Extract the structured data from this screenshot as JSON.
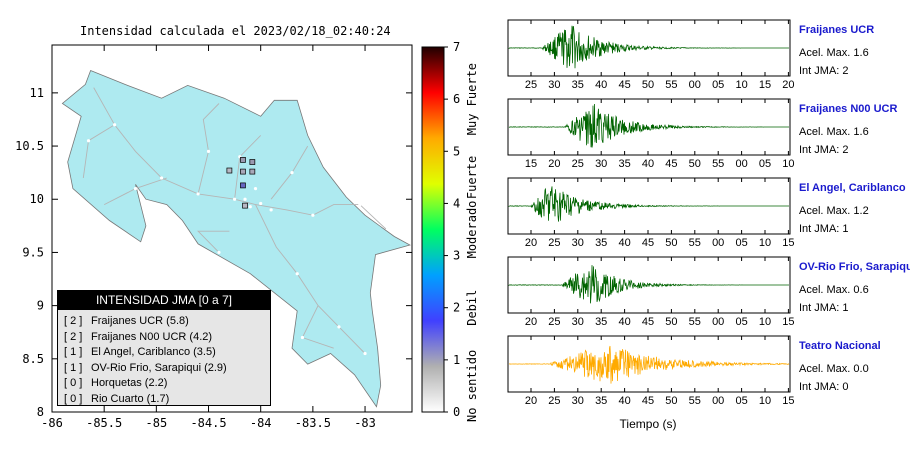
{
  "map": {
    "title": "Intensidad calculada el 2023/02/18_02:40:24",
    "lon_ticks": [
      "-86",
      "-85.5",
      "-85",
      "-84.5",
      "-84",
      "-83.5",
      "-83"
    ],
    "lat_ticks": [
      "8",
      "8.5",
      "9",
      "9.5",
      "10",
      "10.5",
      "11"
    ],
    "lon_range": [
      -86,
      -82.55
    ],
    "lat_range": [
      8,
      11.45
    ],
    "land_color": "#aeeaf0",
    "stations": [
      {
        "lon": -84.3,
        "lat": 10.27,
        "color": "#b8b8c4"
      },
      {
        "lon": -84.17,
        "lat": 10.37,
        "color": "#9a9ab0"
      },
      {
        "lon": -84.17,
        "lat": 10.26,
        "color": "#a8a8b8"
      },
      {
        "lon": -84.17,
        "lat": 10.13,
        "color": "#6666c0"
      },
      {
        "lon": -84.08,
        "lat": 10.35,
        "color": "#9a9ab0"
      },
      {
        "lon": -84.08,
        "lat": 10.26,
        "color": "#a8a8b8"
      },
      {
        "lon": -84.15,
        "lat": 9.94,
        "color": "#b8b8c4"
      }
    ]
  },
  "legend": {
    "title": "INTENSIDAD JMA [0 a 7]",
    "items": [
      {
        "level": "[ 2 ]",
        "label": "Fraijanes UCR (5.8)"
      },
      {
        "level": "[ 2 ]",
        "label": "Fraijanes N00 UCR (4.2)"
      },
      {
        "level": "[ 1 ]",
        "label": "El Angel, Cariblanco (3.5)"
      },
      {
        "level": "[ 1 ]",
        "label": "OV-Rio Frio, Sarapiqui (2.9)"
      },
      {
        "level": "[ 0 ]",
        "label": "Horquetas (2.2)"
      },
      {
        "level": "[ 0 ]",
        "label": "Rio Cuarto (1.7)"
      }
    ]
  },
  "colorbar": {
    "ticks": [
      "0",
      "1",
      "2",
      "3",
      "4",
      "5",
      "6",
      "7"
    ],
    "labels": [
      {
        "text": "No sentido",
        "center": 0.5
      },
      {
        "text": "Debil",
        "center": 2
      },
      {
        "text": "Moderado",
        "center": 3.5
      },
      {
        "text": "Fuerte",
        "center": 4.5
      },
      {
        "text": "Muy Fuerte",
        "center": 6
      }
    ],
    "stops": [
      "#ffffff",
      "#b0b0b0",
      "#4040ff",
      "#00a0ff",
      "#00ff60",
      "#e0ff00",
      "#ffaa00",
      "#ff0000",
      "#200000"
    ]
  },
  "chart_data": {
    "type": "line",
    "xlabel": "Tiempo (s)",
    "panels": [
      {
        "name": "Fraijanes UCR",
        "acel_label": "Acel. Max. 1.6",
        "jma_label": "Int JMA: 2",
        "color": "#006400",
        "amp": 0.95,
        "onset": 0.12,
        "peak": 0.22,
        "decay": 0.1,
        "ticks": [
          "25",
          "30",
          "35",
          "40",
          "45",
          "50",
          "55",
          "00",
          "05",
          "10",
          "15",
          "20"
        ]
      },
      {
        "name": "Fraijanes N00 UCR",
        "acel_label": "Acel. Max. 1.6",
        "jma_label": "Int JMA: 2",
        "color": "#006400",
        "amp": 0.95,
        "onset": 0.2,
        "peak": 0.3,
        "decay": 0.1,
        "ticks": [
          "15",
          "20",
          "25",
          "30",
          "35",
          "40",
          "45",
          "50",
          "55",
          "00",
          "05",
          "10"
        ]
      },
      {
        "name": "El Angel, Cariblanco",
        "acel_label": "Acel. Max. 1.2",
        "jma_label": "Int JMA: 1",
        "color": "#006400",
        "amp": 0.9,
        "onset": 0.08,
        "peak": 0.15,
        "decay": 0.1,
        "ticks": [
          "20",
          "25",
          "30",
          "35",
          "40",
          "45",
          "50",
          "55",
          "00",
          "05",
          "10",
          "15"
        ]
      },
      {
        "name": "OV-Rio Frio, Sarapiqui",
        "acel_label": "Acel. Max. 0.6",
        "jma_label": "Int JMA: 1",
        "color": "#006400",
        "amp": 0.9,
        "onset": 0.19,
        "peak": 0.29,
        "decay": 0.09,
        "ticks": [
          "20",
          "25",
          "30",
          "35",
          "40",
          "45",
          "50",
          "55",
          "00",
          "05",
          "10",
          "15"
        ]
      },
      {
        "name": "Teatro Nacional",
        "acel_label": "Acel. Max. 0.0",
        "jma_label": "Int JMA: 0",
        "color": "#ffaa00",
        "amp": 0.82,
        "onset": 0.15,
        "peak": 0.35,
        "decay": 0.17,
        "ticks": [
          "20",
          "25",
          "30",
          "35",
          "40",
          "45",
          "50",
          "55",
          "00",
          "05",
          "10",
          "15"
        ]
      }
    ]
  }
}
